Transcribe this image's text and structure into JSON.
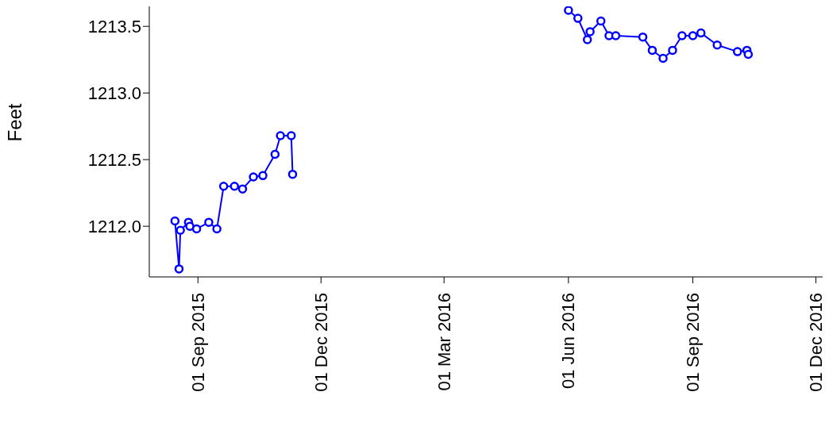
{
  "chart_data": {
    "type": "line",
    "ylabel": "Feet",
    "marker": "circle",
    "line_style": "solid",
    "xlim": [
      "2015-07-27",
      "2016-12-06"
    ],
    "xticks": [
      {
        "value": "2015-09-01",
        "label": "01 Sep 2015"
      },
      {
        "value": "2015-12-01",
        "label": "01 Dec 2015"
      },
      {
        "value": "2016-03-01",
        "label": "01 Mar 2016"
      },
      {
        "value": "2016-06-01",
        "label": "01 Jun 2016"
      },
      {
        "value": "2016-09-01",
        "label": "01 Sep 2016"
      },
      {
        "value": "2016-12-01",
        "label": "01 Dec 2016"
      }
    ],
    "ylim": [
      1211.62,
      1213.65
    ],
    "yticks": [
      {
        "value": 1212,
        "label": "1212.0"
      },
      {
        "value": 1212.5,
        "label": "1212.5"
      },
      {
        "value": 1213,
        "label": "1213.0"
      },
      {
        "value": 1213.5,
        "label": "1213.5"
      }
    ],
    "series": [
      {
        "color": "#0000ff",
        "x": [
          "2015-08-15",
          "2015-08-18",
          "2015-08-19",
          "2015-08-25",
          "2015-08-26",
          "2015-08-31",
          "2015-09-09",
          "2015-09-15",
          "2015-09-20",
          "2015-09-28",
          "2015-10-04",
          "2015-10-12",
          "2015-10-19",
          "2015-10-28",
          "2015-11-01",
          "2015-11-09",
          "2015-11-10"
        ],
        "values": [
          1212.04,
          1211.68,
          1211.97,
          1212.03,
          1212.0,
          1211.98,
          1212.03,
          1211.98,
          1212.3,
          1212.3,
          1212.28,
          1212.37,
          1212.38,
          1212.54,
          1212.68,
          1212.68,
          1212.39
        ]
      },
      {
        "color": "#0000ff",
        "x": [
          "2016-06-01",
          "2016-06-08",
          "2016-06-15",
          "2016-06-17",
          "2016-06-25",
          "2016-07-01",
          "2016-07-06",
          "2016-07-26",
          "2016-08-02",
          "2016-08-10",
          "2016-08-17",
          "2016-08-24",
          "2016-09-01",
          "2016-09-07",
          "2016-09-19",
          "2016-10-04",
          "2016-10-11",
          "2016-10-12"
        ],
        "values": [
          1213.62,
          1213.56,
          1213.4,
          1213.46,
          1213.54,
          1213.43,
          1213.43,
          1213.42,
          1213.32,
          1213.26,
          1213.32,
          1213.43,
          1213.43,
          1213.45,
          1213.36,
          1213.31,
          1213.32,
          1213.29
        ]
      }
    ]
  }
}
